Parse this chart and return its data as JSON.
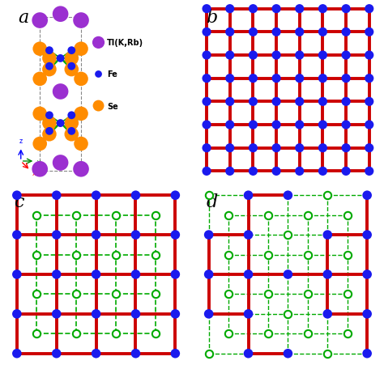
{
  "panel_labels": [
    "a",
    "b",
    "c",
    "d"
  ],
  "label_fontsize": 16,
  "colors": {
    "Tl": "#9b30d0",
    "Fe": "#1a1aee",
    "Se": "#ff8c00",
    "red_bond": "#cc0000",
    "green_bond": "#00aa00",
    "dashed_box": "#aaaaaa",
    "bg": "#ffffff"
  },
  "legend": {
    "Tl_label": "Tl(K,Rb)",
    "Fe_label": "Fe",
    "Se_label": "Se"
  }
}
